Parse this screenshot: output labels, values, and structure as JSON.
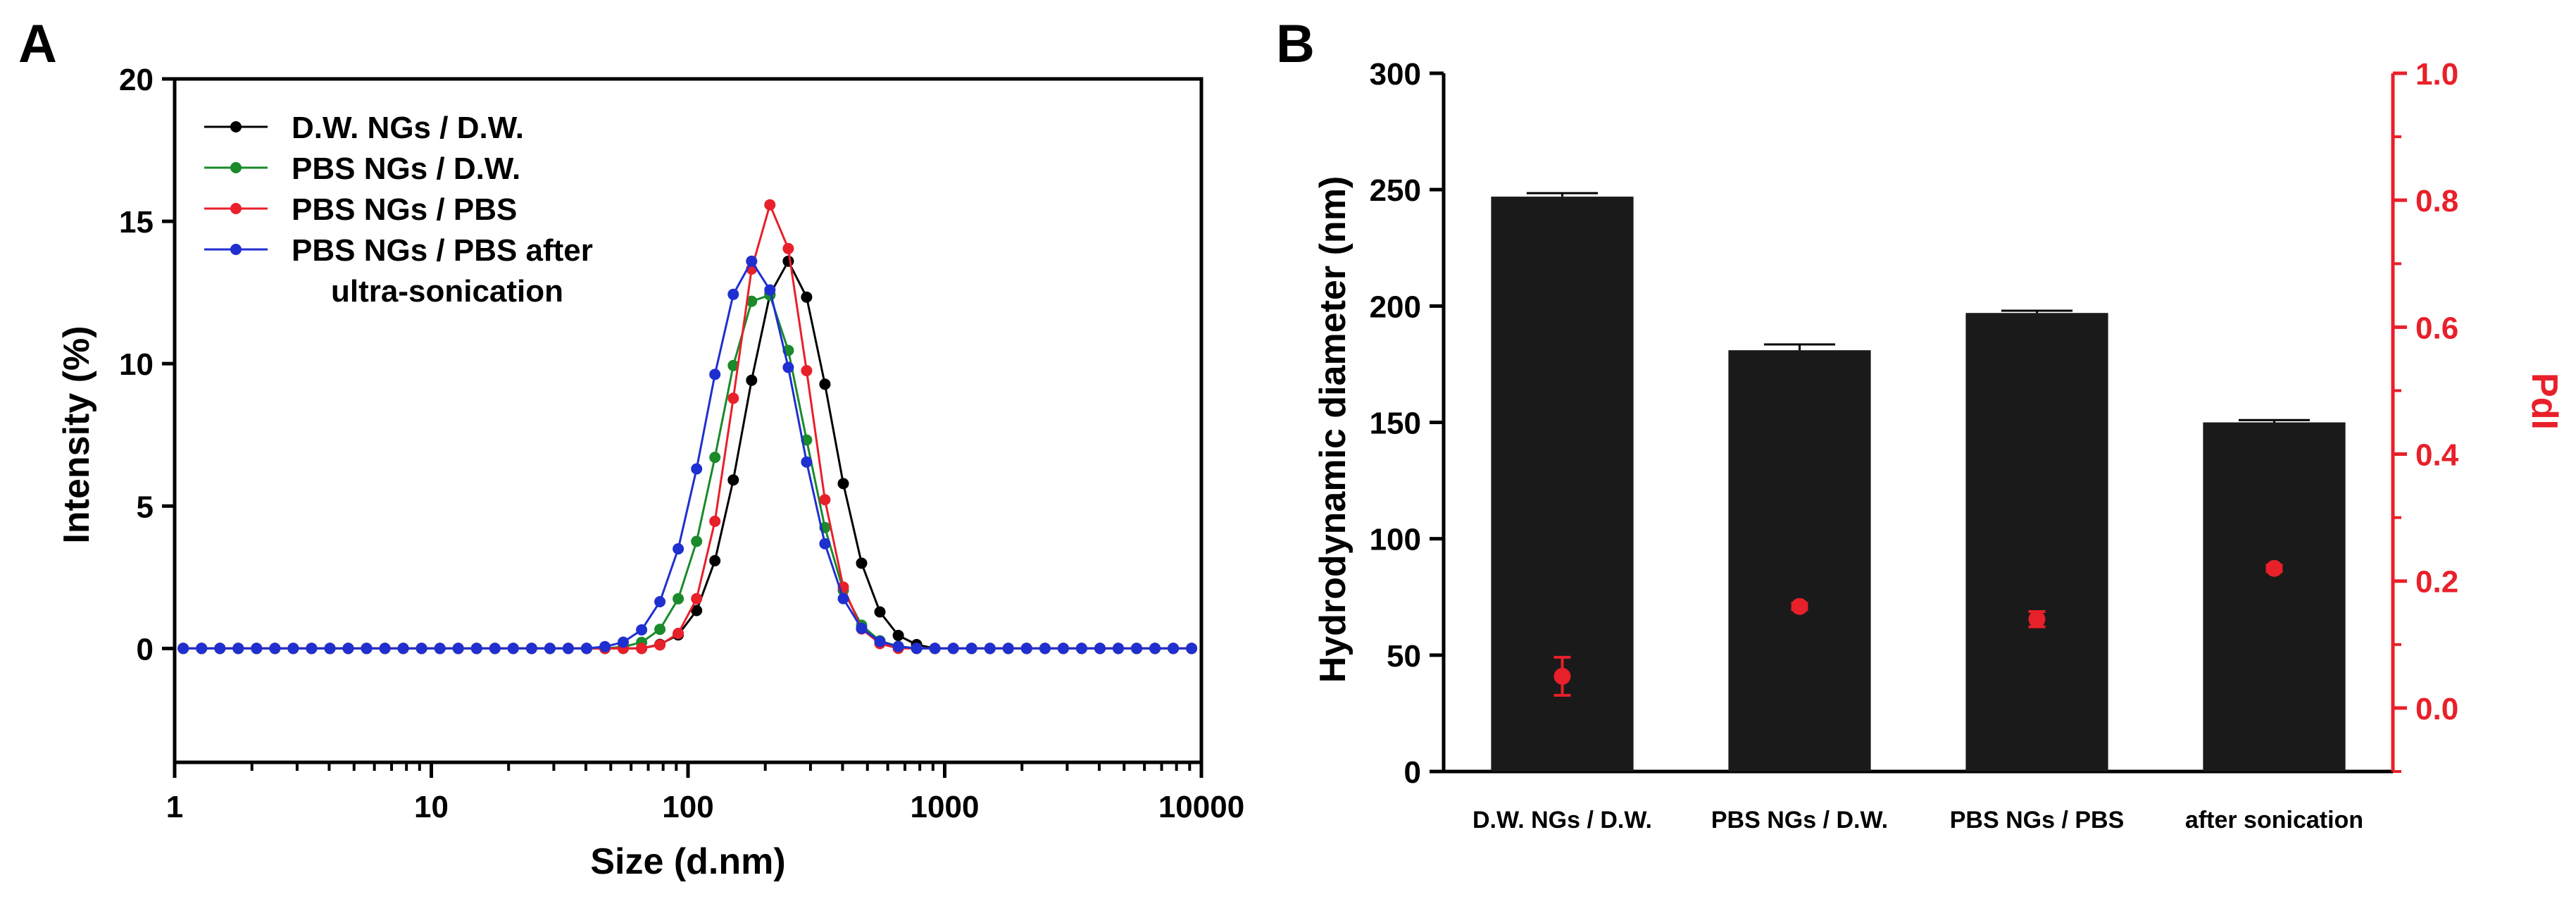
{
  "panels": {
    "a": {
      "label": "A",
      "chart_data": {
        "type": "line",
        "xscale": "log",
        "xlim": [
          1,
          10000
        ],
        "ylim": [
          -4,
          20
        ],
        "xlabel": "Size (d.nm)",
        "ylabel": "Intensity (%)",
        "xticks": [
          1,
          10,
          100,
          1000,
          10000
        ],
        "xtick_labels": [
          "1",
          "10",
          "100",
          "1000",
          "10000"
        ],
        "yticks": [
          0,
          5,
          10,
          15,
          20
        ],
        "ytick_labels": [
          "0",
          "5",
          "10",
          "15",
          "20"
        ],
        "legend_position": "top-left",
        "series": [
          {
            "name": "D.W. NGs / D.W.",
            "legend": [
              "D.W. NGs / D.W."
            ],
            "color": "#000000",
            "center": 245,
            "sigma": 0.165,
            "peak": 13.6
          },
          {
            "name": "PBS NGs / D.W.",
            "legend": [
              "PBS NGs / D.W."
            ],
            "color": "#1a8a2a",
            "center": 195,
            "sigma": 0.165,
            "peak": 12.6
          },
          {
            "name": "PBS NGs / PBS",
            "legend": [
              "PBS NGs / PBS"
            ],
            "color": "#e8202a",
            "center": 212,
            "sigma": 0.14,
            "peak": 15.6
          },
          {
            "name": "PBS NGs / PBS after ultra-sonication",
            "legend": [
              "PBS NGs / PBS after",
              "ultra-sonication"
            ],
            "color": "#1f2fd0",
            "center": 178,
            "sigma": 0.175,
            "peak": 13.6
          }
        ]
      }
    },
    "b": {
      "label": "B",
      "chart_data": {
        "type": "bar",
        "categories": [
          "D.W. NGs / D.W.",
          "PBS NGs / D.W.",
          "PBS NGs / PBS",
          "after sonication"
        ],
        "series": [
          {
            "name": "Hydrodynamic diameter (nm)",
            "axis": "left",
            "values": [
              247,
              181,
              197,
              150
            ],
            "errors": [
              1.5,
              2.5,
              1.0,
              1.0
            ],
            "color": "#1a1a1a"
          },
          {
            "name": "PdI",
            "axis": "right",
            "values": [
              0.05,
              0.16,
              0.14,
              0.22
            ],
            "errors": [
              0.03,
              0.005,
              0.012,
              0.005
            ],
            "color": "#e8202a"
          }
        ],
        "ylabel_left": "Hydrodynamic diameter (nm)",
        "ylabel_right": "PdI",
        "ylim_left": [
          0,
          300
        ],
        "ylim_right": [
          -0.1,
          1.0
        ],
        "yticks_left": [
          0,
          50,
          100,
          150,
          200,
          250,
          300
        ],
        "ytick_labels_left": [
          "0",
          "50",
          "100",
          "150",
          "200",
          "250",
          "300"
        ],
        "yticks_right": [
          0.0,
          0.2,
          0.4,
          0.6,
          0.8,
          1.0
        ],
        "ytick_labels_right": [
          "0.0",
          "0.2",
          "0.4",
          "0.6",
          "0.8",
          "1.0"
        ]
      }
    }
  }
}
